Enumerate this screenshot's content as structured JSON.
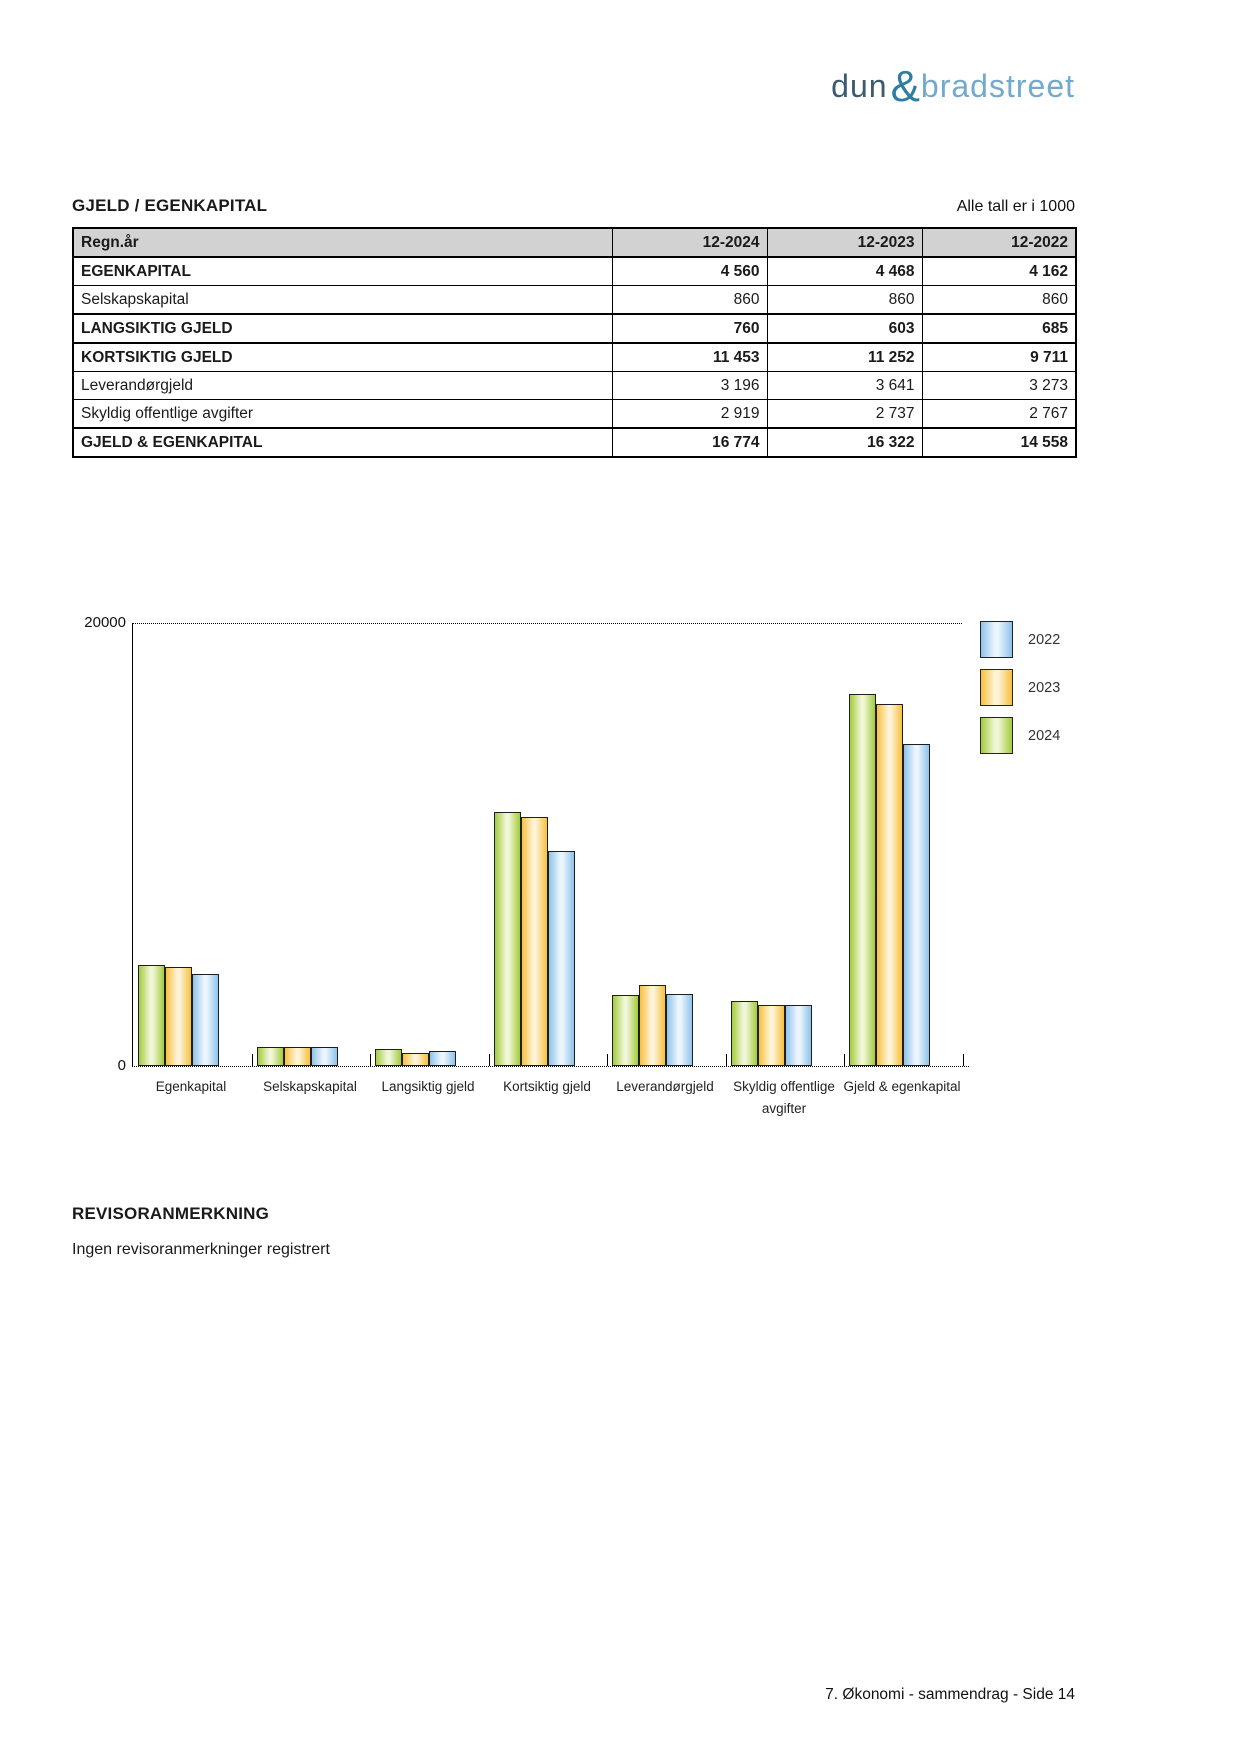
{
  "logo": {
    "dun": "dun",
    "amp": "&",
    "bradstreet": "bradstreet",
    "dun_color": "#3d5a6e",
    "amp_color": "#2e7e9f",
    "bradstreet_color": "#73a9cd"
  },
  "section": {
    "title": "GJELD / EGENKAPITAL",
    "note": "Alle tall er i 1000"
  },
  "table": {
    "columns": [
      "Regn.år",
      "12-2024",
      "12-2023",
      "12-2022"
    ],
    "rows": [
      {
        "label": "EGENKAPITAL",
        "bold": true,
        "values": [
          "4 560",
          "4 468",
          "4 162"
        ]
      },
      {
        "label": "Selskapskapital",
        "bold": false,
        "values": [
          "860",
          "860",
          "860"
        ]
      },
      {
        "label": "LANGSIKTIG GJELD",
        "bold": true,
        "values": [
          "760",
          "603",
          "685"
        ]
      },
      {
        "label": "KORTSIKTIG GJELD",
        "bold": true,
        "values": [
          "11 453",
          "11 252",
          "9 711"
        ]
      },
      {
        "label": "Leverandørgjeld",
        "bold": false,
        "values": [
          "3 196",
          "3 641",
          "3 273"
        ]
      },
      {
        "label": "Skyldig offentlige avgifter",
        "bold": false,
        "values": [
          "2 919",
          "2 737",
          "2 767"
        ]
      },
      {
        "label": "GJELD & EGENKAPITAL",
        "bold": true,
        "values": [
          "16 774",
          "16 322",
          "14 558"
        ]
      }
    ]
  },
  "chart_data": {
    "type": "bar",
    "title": "",
    "categories": [
      "Egenkapital",
      "Selskapskapital",
      "Langsiktig gjeld",
      "Kortsiktig gjeld",
      "Leverandørgjeld",
      "Skyldig offentlige avgifter",
      "Gjeld & egenkapital"
    ],
    "series": [
      {
        "name": "2024",
        "edge": "#a3cb3c",
        "light": "#f0f7d8",
        "values": [
          4560,
          860,
          760,
          11453,
          3196,
          2919,
          16774
        ]
      },
      {
        "name": "2023",
        "edge": "#f8c03d",
        "light": "#fdf3d8",
        "values": [
          4468,
          860,
          603,
          11252,
          3641,
          2737,
          16322
        ]
      },
      {
        "name": "2022",
        "edge": "#8dc3eb",
        "light": "#ecf5fd",
        "values": [
          4162,
          860,
          685,
          9711,
          3273,
          2767,
          14558
        ]
      }
    ],
    "legend_order": [
      "2022",
      "2023",
      "2024"
    ],
    "legend_position": "top-right",
    "ylim": [
      0,
      20000
    ],
    "ytick_labels": [
      "0",
      "20000"
    ],
    "grid": "dotted line at y-max and baseline",
    "bar_border": "#1f1f1f"
  },
  "remarks": {
    "title": "REVISORANMERKNING",
    "text": "Ingen revisoranmerkninger registrert"
  },
  "footer": {
    "text": "7. Økonomi - sammendrag - Side 14"
  }
}
